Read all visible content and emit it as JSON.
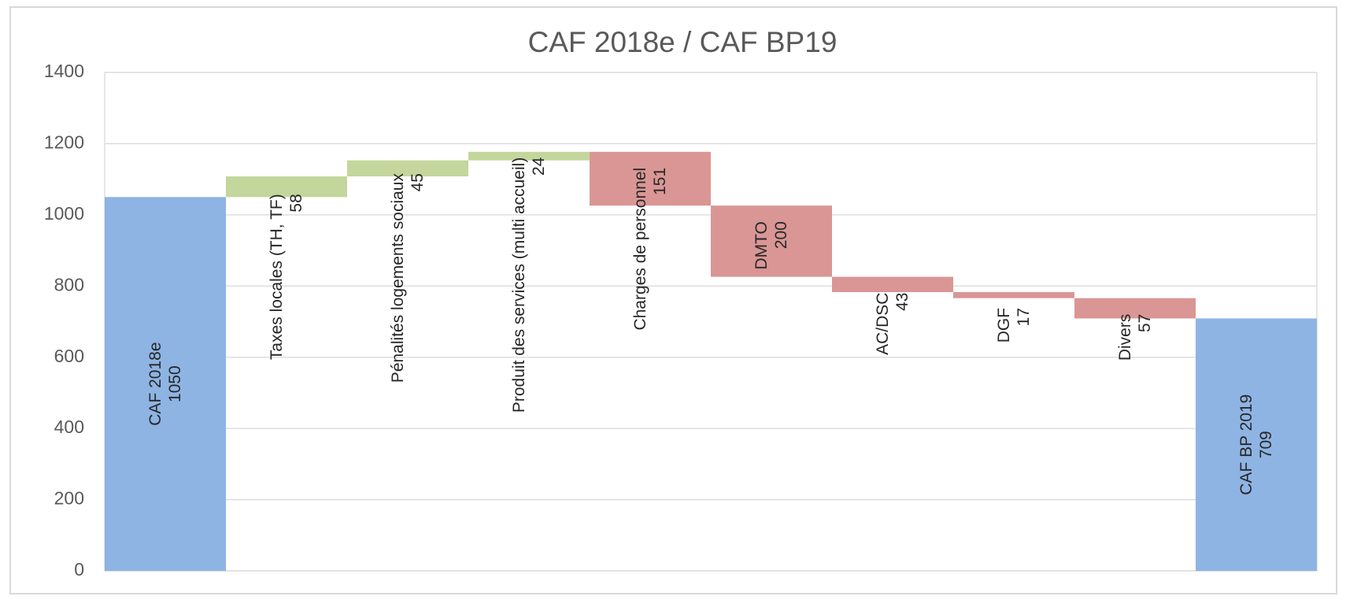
{
  "chart_data": {
    "type": "waterfall",
    "title": "CAF 2018e / CAF BP19",
    "categories": [
      "CAF 2018e",
      "Taxes locales (TH, TF)",
      "Pénalités logements sociaux",
      "Produit des services (multi accueil)",
      "Charges de personnel",
      "DMTO",
      "AC/DSC",
      "DGF",
      "Divers",
      "CAF BP 2019"
    ],
    "values": [
      1050,
      58,
      45,
      24,
      151,
      200,
      43,
      17,
      57,
      709
    ],
    "measure": [
      "total",
      "increase",
      "increase",
      "increase",
      "decrease",
      "decrease",
      "decrease",
      "decrease",
      "decrease",
      "total"
    ],
    "colors": {
      "total": "#8eb4e3",
      "increase": "#c3d69b",
      "decrease": "#d99694"
    },
    "ylim": [
      0,
      1400
    ],
    "yticks": [
      0,
      200,
      400,
      600,
      800,
      1000,
      1200,
      1400
    ],
    "grid": true
  }
}
